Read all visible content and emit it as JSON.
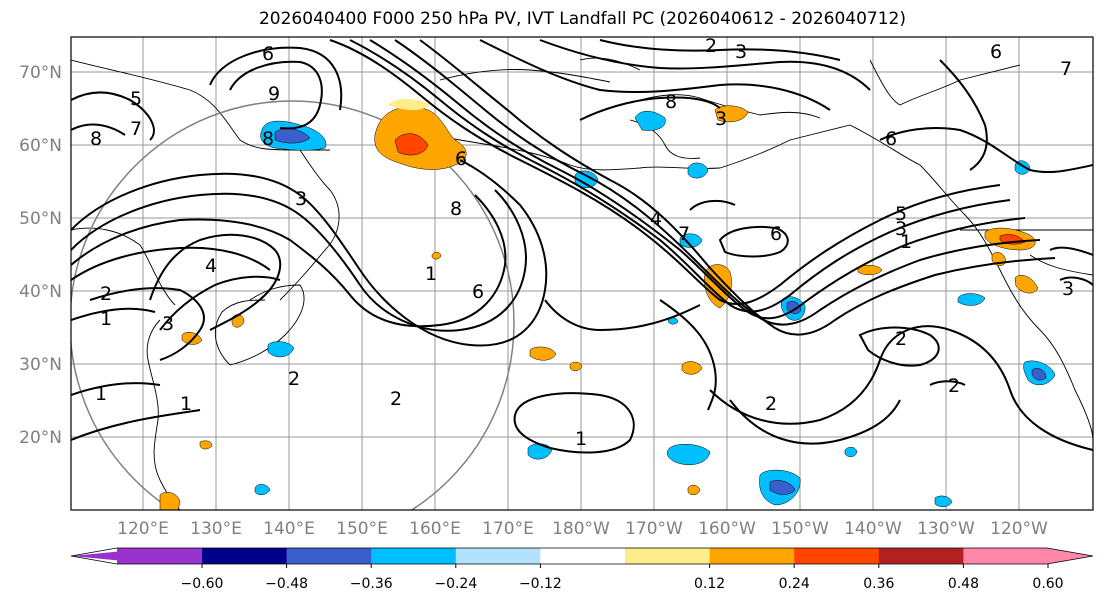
{
  "title": "2026040400 F000 250 hPa PV, IVT Landfall PC (2026040612 - 2026040712)",
  "lat_labels": [
    "70°N",
    "60°N",
    "50°N",
    "40°N",
    "30°N",
    "20°N"
  ],
  "lon_labels": [
    "120°E",
    "130°E",
    "140°E",
    "150°E",
    "160°E",
    "170°E",
    "180°W",
    "170°W",
    "160°W",
    "150°W",
    "140°W",
    "130°W",
    "120°W"
  ],
  "contour_labels": [
    "1",
    "2",
    "3",
    "4",
    "5",
    "6",
    "7",
    "8",
    "9"
  ],
  "colorbar": {
    "ticks": [
      "−0.60",
      "−0.48",
      "−0.36",
      "−0.24",
      "−0.12",
      "0.12",
      "0.24",
      "0.36",
      "0.48",
      "0.60"
    ],
    "colors": [
      "#9932CC",
      "#00008B",
      "#3A5FCD",
      "#00BFFF",
      "#B2E2FF",
      "#FFFFFF",
      "#FFEC8B",
      "#FFA500",
      "#FF4500",
      "#B22222",
      "#FF88AA"
    ]
  },
  "palette": {
    "strong_negative": "#3A5FCD",
    "negative": "#00BFFF",
    "weak_negative": "#B2E2FF",
    "weak_positive": "#FFEC8B",
    "positive": "#FFA500",
    "strong_positive": "#FF4500",
    "contour": "#000000",
    "circle": "#808080",
    "grid": "#999999"
  }
}
